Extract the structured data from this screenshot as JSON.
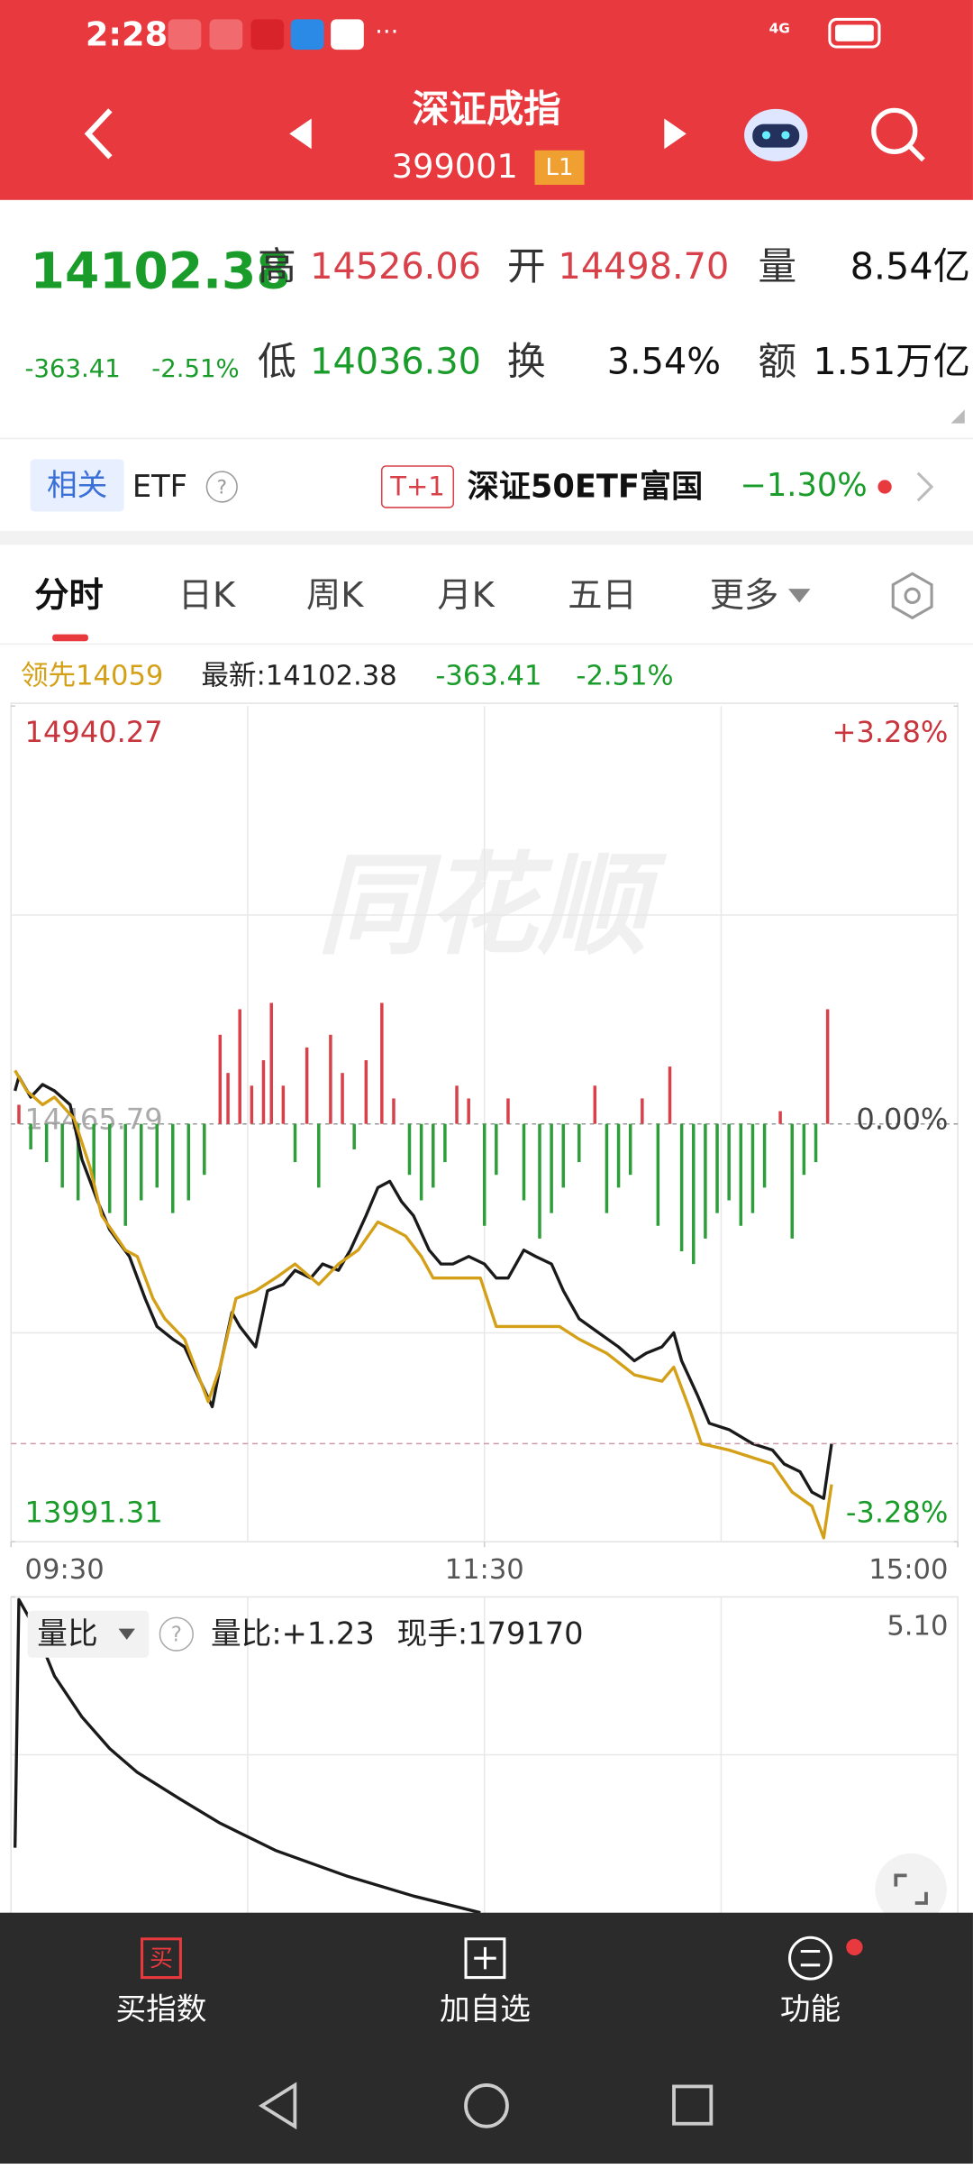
{
  "status_bar": {
    "time": "2:28",
    "network": "4G"
  },
  "header": {
    "title": "深证成指",
    "code": "399001",
    "level": "L1"
  },
  "quote": {
    "price": "14102.38",
    "change": "-363.41",
    "change_pct": "-2.51%",
    "high_label": "高",
    "high": "14526.06",
    "open_label": "开",
    "open": "14498.70",
    "volume_label": "量",
    "volume": "8.54亿",
    "low_label": "低",
    "low": "14036.30",
    "turnover_label": "换",
    "turnover": "3.54%",
    "amount_label": "额",
    "amount": "1.51万亿"
  },
  "etf": {
    "related": "相关",
    "etf": "ETF",
    "badge": "T+1",
    "name": "深证50ETF富国",
    "change_pct": "−1.30%"
  },
  "tabs": [
    "分时",
    "日K",
    "周K",
    "月K",
    "五日",
    "更多"
  ],
  "info": {
    "lead": "领先14059",
    "latest": "最新:14102.38",
    "change": "-363.41",
    "change_pct": "-2.51%"
  },
  "watermark": "同花顺",
  "chart_data": [
    {
      "type": "line",
      "xlim": [
        0,
        240
      ],
      "xticks": [
        {
          "value": 0,
          "label": "09:30"
        },
        {
          "value": 120,
          "label": "11:30"
        },
        {
          "value": 240,
          "label": "15:00"
        }
      ],
      "ylim": [
        13991.31,
        14940.27
      ],
      "yticks": [
        13991.31,
        14465.79,
        14940.27
      ],
      "y2lim": [
        -3.28,
        3.28
      ],
      "y2ticks": [
        {
          "value": -3.28,
          "label": "-3.28%"
        },
        {
          "value": 0,
          "label": "0.00%"
        },
        {
          "value": 3.28,
          "label": "+3.28%"
        }
      ],
      "series": [
        {
          "color": "#1a1a1a",
          "axis": "y2",
          "x": [
            1,
            2,
            5,
            8,
            11,
            15,
            18,
            22,
            25,
            30,
            34,
            37,
            41,
            44,
            48,
            51,
            53,
            56,
            58,
            62,
            65,
            69,
            72,
            76,
            79,
            83,
            86,
            90,
            93,
            96,
            99,
            102,
            106,
            109,
            112,
            116,
            120,
            123,
            126,
            130,
            133,
            137,
            140,
            144,
            149,
            154,
            158,
            161,
            165,
            168,
            170,
            174,
            177,
            182,
            188,
            193,
            196,
            200,
            203,
            206,
            208
          ],
          "values": [
            0.26,
            0.37,
            0.21,
            0.31,
            0.26,
            0.15,
            -0.28,
            -0.61,
            -0.83,
            -1.04,
            -1.37,
            -1.59,
            -1.69,
            -1.75,
            -2.02,
            -2.22,
            -1.91,
            -1.48,
            -1.59,
            -1.75,
            -1.31,
            -1.26,
            -1.15,
            -1.21,
            -1.1,
            -1.15,
            -0.99,
            -0.72,
            -0.5,
            -0.45,
            -0.61,
            -0.72,
            -0.99,
            -1.1,
            -1.1,
            -1.04,
            -1.1,
            -1.21,
            -1.21,
            -0.99,
            -1.04,
            -1.1,
            -1.31,
            -1.53,
            -1.64,
            -1.75,
            -1.86,
            -1.8,
            -1.75,
            -1.64,
            -1.86,
            -2.13,
            -2.35,
            -2.4,
            -2.51,
            -2.56,
            -2.67,
            -2.73,
            -2.89,
            -2.94,
            -2.51
          ]
        },
        {
          "color": "#d4a017",
          "axis": "y2",
          "x": [
            1,
            4,
            8,
            11,
            16,
            20,
            23,
            29,
            32,
            36,
            39,
            44,
            50,
            53,
            57,
            62,
            67,
            72,
            78,
            83,
            88,
            93,
            97,
            100,
            104,
            107,
            112,
            119,
            123,
            128,
            133,
            139,
            144,
            151,
            158,
            165,
            168,
            172,
            175,
            182,
            188,
            193,
            198,
            203,
            206,
            208
          ],
          "values": [
            0.42,
            0.26,
            0.15,
            0.21,
            0.04,
            -0.34,
            -0.72,
            -0.99,
            -1.04,
            -1.37,
            -1.53,
            -1.69,
            -2.18,
            -1.91,
            -1.37,
            -1.31,
            -1.21,
            -1.1,
            -1.26,
            -1.1,
            -0.99,
            -0.77,
            -0.83,
            -0.88,
            -1.04,
            -1.21,
            -1.21,
            -1.21,
            -1.59,
            -1.59,
            -1.59,
            -1.59,
            -1.69,
            -1.8,
            -1.97,
            -2.02,
            -1.91,
            -2.24,
            -2.51,
            -2.56,
            -2.62,
            -2.67,
            -2.89,
            -3.0,
            -3.25,
            -2.83
          ]
        },
        {
          "type": "bar",
          "axis": "y2",
          "up_color": "#d9414a",
          "down_color": "#2e9e3a",
          "x": [
            2,
            5,
            9,
            13,
            17,
            21,
            25,
            29,
            33,
            37,
            41,
            45,
            49,
            53,
            55,
            58,
            61,
            64,
            66,
            69,
            72,
            75,
            78,
            81,
            84,
            87,
            90,
            94,
            97,
            101,
            104,
            107,
            110,
            113,
            116,
            120,
            123,
            126,
            130,
            134,
            137,
            140,
            144,
            148,
            151,
            154,
            157,
            160,
            164,
            167,
            170,
            173,
            176,
            179,
            182,
            185,
            188,
            191,
            195,
            198,
            201,
            204,
            207
          ],
          "values": [
            0.15,
            -0.2,
            -0.3,
            -0.5,
            -0.6,
            -0.5,
            -0.7,
            -0.8,
            -0.6,
            -0.5,
            -0.7,
            -0.6,
            -0.4,
            0.7,
            0.4,
            0.9,
            0.3,
            0.5,
            0.95,
            0.3,
            -0.3,
            0.6,
            -0.5,
            0.7,
            0.4,
            -0.2,
            0.5,
            0.95,
            0.2,
            -0.4,
            -0.6,
            -0.5,
            -0.3,
            0.3,
            0.2,
            -0.8,
            -0.4,
            0.2,
            -0.6,
            -0.9,
            -0.7,
            -0.5,
            -0.3,
            0.3,
            -0.7,
            -0.5,
            -0.4,
            0.2,
            -0.8,
            0.45,
            -1.0,
            -1.1,
            -0.9,
            -0.7,
            -0.6,
            -0.8,
            -0.7,
            -0.5,
            0.1,
            -0.9,
            -0.4,
            -0.3,
            0.9
          ]
        }
      ]
    },
    {
      "type": "line",
      "title": "量比",
      "ratio": "量比:+1.23",
      "hand": "现手:179170",
      "xlim": [
        0,
        240
      ],
      "ylim": [
        1.5,
        5.1
      ],
      "yticks": [
        {
          "value": 5.1,
          "label": "5.10"
        }
      ],
      "series": [
        {
          "color": "#1a1a1a",
          "x": [
            1,
            2,
            6,
            11,
            18,
            25,
            32,
            43,
            53,
            67,
            85,
            102,
            119
          ],
          "values": [
            2.24,
            5.07,
            4.75,
            4.2,
            3.73,
            3.37,
            3.1,
            2.79,
            2.52,
            2.21,
            1.92,
            1.69,
            1.5
          ]
        }
      ]
    }
  ],
  "bottom_bar": {
    "buy_icon": "买",
    "buy": "买指数",
    "add": "加自选",
    "func": "功能"
  }
}
